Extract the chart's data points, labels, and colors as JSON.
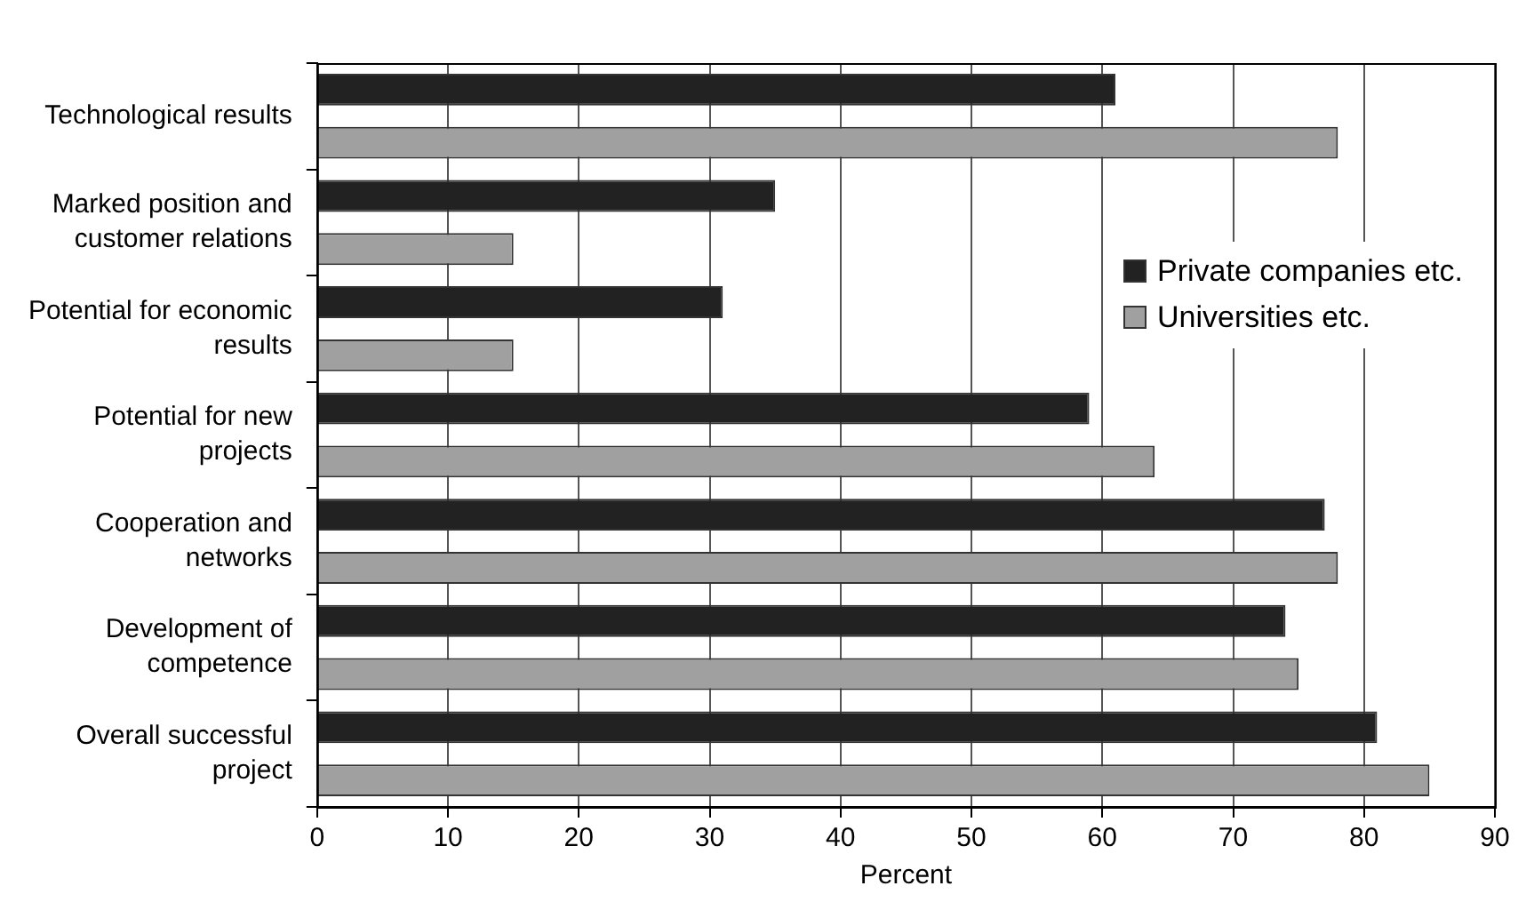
{
  "chart_data": {
    "type": "bar",
    "orientation": "horizontal",
    "xlabel": "Percent",
    "categories": [
      "Technological results",
      "Marked position and customer relations",
      "Potential for economic results",
      "Potential for new projects",
      "Cooperation and networks",
      "Development of competence",
      "Overall successful project"
    ],
    "series": [
      {
        "name": "Private companies etc.",
        "color": "#222222",
        "values": [
          61,
          35,
          31,
          59,
          77,
          74,
          81
        ]
      },
      {
        "name": "Universities etc.",
        "color": "#a0a0a0",
        "values": [
          78,
          15,
          15,
          64,
          78,
          75,
          85
        ]
      }
    ],
    "xlim": [
      0,
      90
    ],
    "xticks": [
      0,
      10,
      20,
      30,
      40,
      50,
      60,
      70,
      80,
      90
    ],
    "grid": "x",
    "legend": "right"
  }
}
